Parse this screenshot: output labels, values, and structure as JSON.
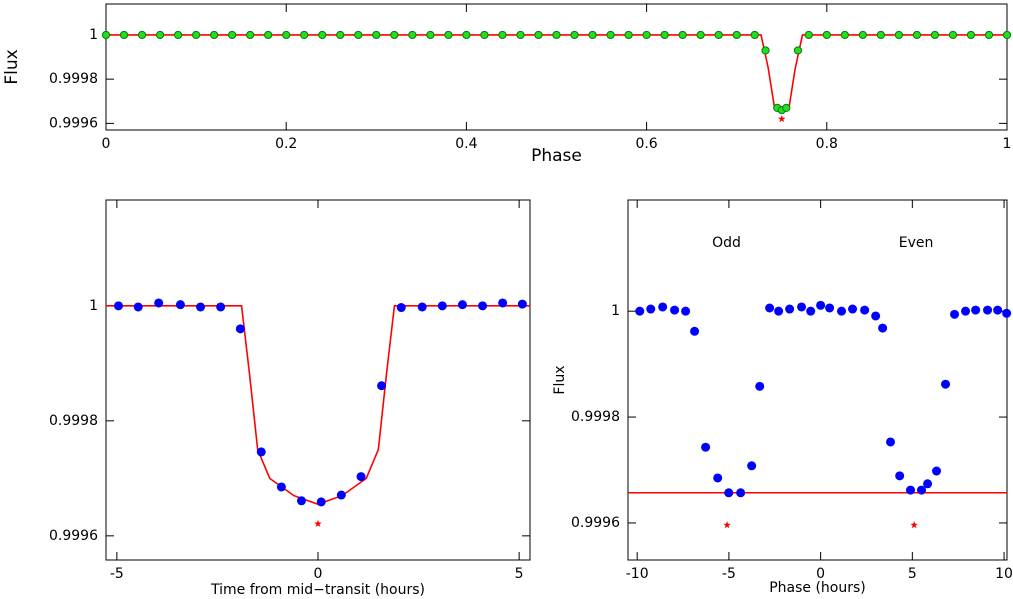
{
  "chart_data": [
    {
      "type": "scatter",
      "xlabel": "Phase",
      "ylabel": "Flux",
      "xlim": [
        0,
        1
      ],
      "ylim": [
        0.99957,
        1.00014
      ],
      "xticks": [
        0,
        0.2,
        0.4,
        0.6,
        0.8,
        1
      ],
      "yticks": [
        0.9996,
        0.9998,
        1
      ],
      "series": [
        {
          "mode": "line",
          "color": "#ff0000",
          "x": [
            0,
            0.727,
            0.735,
            0.742,
            0.758,
            0.765,
            0.773,
            1
          ],
          "values": [
            1,
            1,
            0.99985,
            0.99967,
            0.99967,
            0.99985,
            1,
            1
          ]
        },
        {
          "mode": "circle",
          "color": "#22dd22",
          "x": [
            0,
            0.02,
            0.04,
            0.06,
            0.08,
            0.1,
            0.12,
            0.14,
            0.16,
            0.18,
            0.2,
            0.22,
            0.24,
            0.26,
            0.28,
            0.3,
            0.32,
            0.34,
            0.36,
            0.38,
            0.4,
            0.42,
            0.44,
            0.46,
            0.48,
            0.5,
            0.52,
            0.54,
            0.56,
            0.58,
            0.6,
            0.62,
            0.64,
            0.66,
            0.68,
            0.7,
            0.72,
            0.732,
            0.745,
            0.75,
            0.755,
            0.768,
            0.78,
            0.8,
            0.82,
            0.84,
            0.86,
            0.88,
            0.9,
            0.92,
            0.94,
            0.96,
            0.98,
            1
          ],
          "values": [
            1,
            1,
            1,
            1,
            1,
            1,
            1,
            1,
            1,
            1,
            1,
            1,
            1,
            1,
            1,
            1,
            1,
            1,
            1,
            1,
            1,
            1,
            1,
            1,
            1,
            1,
            1,
            1,
            1,
            1,
            1,
            1,
            1,
            1,
            1,
            1,
            1,
            0.99993,
            0.99967,
            0.99966,
            0.99967,
            0.99993,
            1,
            1,
            1,
            1,
            1,
            1,
            1,
            1,
            1,
            1,
            1,
            1
          ]
        },
        {
          "mode": "star",
          "color": "#ff0000",
          "x": [
            0.75
          ],
          "values": [
            0.99962
          ]
        }
      ]
    },
    {
      "type": "scatter",
      "xlabel": "Time from mid−transit (hours)",
      "xlim": [
        -5.27,
        5.27
      ],
      "ylim": [
        0.999558,
        1.000184
      ],
      "xticks": [
        -5,
        0,
        5
      ],
      "yticks": [
        0.9996,
        0.9998,
        1
      ],
      "series": [
        {
          "mode": "line",
          "color": "#ff0000",
          "x": [
            -5.27,
            -1.9,
            -1.7,
            -1.5,
            -1.2,
            -0.6,
            0,
            0.6,
            1.2,
            1.5,
            1.7,
            1.9,
            5.27
          ],
          "values": [
            1,
            1,
            0.99988,
            0.99975,
            0.9997,
            0.99967,
            0.999655,
            0.99967,
            0.9997,
            0.99975,
            0.99988,
            1,
            1
          ]
        },
        {
          "mode": "circle",
          "color": "#0000ff",
          "x": [
            -4.96,
            -4.47,
            -3.96,
            -3.42,
            -2.92,
            -2.42,
            -1.93,
            -1.41,
            -0.91,
            -0.41,
            0.08,
            0.58,
            1.07,
            1.58,
            2.07,
            2.59,
            3.09,
            3.59,
            4.09,
            4.59,
            5.08
          ],
          "values": [
            1.0,
            0.999998,
            1.000005,
            1.000002,
            0.999998,
            0.999998,
            0.99996,
            0.999746,
            0.999685,
            0.999661,
            0.999659,
            0.999671,
            0.999703,
            0.999861,
            0.999997,
            0.999998,
            1.0,
            1.000002,
            1.0,
            1.000005,
            1.000003
          ]
        },
        {
          "mode": "star",
          "color": "#ff0000",
          "x": [
            0
          ],
          "values": [
            0.999621
          ]
        }
      ]
    },
    {
      "type": "scatter",
      "xlabel": "Phase (hours)",
      "ylabel": "Flux",
      "annotations": [
        "Odd",
        "Even"
      ],
      "xlim": [
        -10.5,
        10.16
      ],
      "ylim": [
        0.99953,
        1.00021
      ],
      "xticks": [
        -10,
        -5,
        0,
        5,
        10
      ],
      "yticks": [
        0.9996,
        0.9998,
        1
      ],
      "hlines": [
        {
          "value": 0.999657,
          "color": "#ff0000"
        }
      ],
      "series": [
        {
          "mode": "circle",
          "color": "#0000ff",
          "x": [
            -9.86,
            -9.26,
            -8.61,
            -7.96,
            -7.36,
            -6.87,
            -6.27,
            -5.61,
            -5.01,
            -4.36,
            -3.76,
            -3.32,
            -2.78,
            -2.29,
            -1.69,
            -1.04,
            -0.54,
            0,
            0.49,
            1.14,
            1.74,
            2.4,
            3.0,
            3.38,
            3.81,
            4.31,
            4.9,
            5.5,
            5.83,
            6.32,
            6.81,
            7.3,
            7.9,
            8.45,
            9.1,
            9.65,
            10.14
          ],
          "values": [
            1,
            1.000004,
            1.000008,
            1.000002,
            1,
            0.999962,
            0.999743,
            0.999685,
            0.999657,
            0.999657,
            0.999708,
            0.999858,
            1.000006,
            1,
            1.000004,
            1.000008,
            1,
            1.000011,
            1.000006,
            1,
            1.000004,
            1.000002,
            0.999991,
            0.999968,
            0.999753,
            0.999689,
            0.999662,
            0.999662,
            0.999674,
            0.999698,
            0.999862,
            0.999994,
            1,
            1.000002,
            1.000002,
            1.000002,
            0.999996
          ]
        },
        {
          "mode": "star",
          "color": "#ff0000",
          "x": [
            -5.1,
            5.1
          ],
          "values": [
            0.999596,
            0.999596
          ]
        }
      ]
    }
  ]
}
